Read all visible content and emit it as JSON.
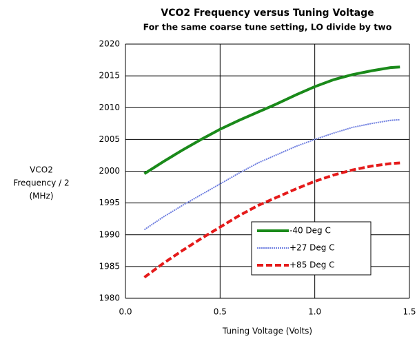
{
  "chart_data": {
    "type": "line",
    "title": "VCO2 Frequency versus Tuning Voltage",
    "subtitle": "For the same coarse tune setting, LO divide by two",
    "x_label": "Tuning Voltage (Volts)",
    "y_label": [
      "VCO2",
      "Frequency / 2",
      "(MHz)"
    ],
    "x": [
      0.1,
      0.2,
      0.3,
      0.4,
      0.5,
      0.6,
      0.7,
      0.8,
      0.9,
      1.0,
      1.1,
      1.2,
      1.3,
      1.4,
      1.45
    ],
    "series": [
      {
        "name": "-40 Deg C",
        "color": "#1a8a1a",
        "style": "solid",
        "values": [
          1999.6,
          2001.5,
          2003.3,
          2005.0,
          2006.6,
          2008.0,
          2009.3,
          2010.6,
          2012.0,
          2013.3,
          2014.4,
          2015.2,
          2015.8,
          2016.3,
          2016.4
        ]
      },
      {
        "name": "+27 Deg C",
        "color": "#6f7fe0",
        "style": "dotted",
        "values": [
          1990.8,
          1992.8,
          1994.6,
          1996.3,
          1998.0,
          1999.7,
          2001.3,
          2002.6,
          2003.9,
          2005.0,
          2006.0,
          2006.9,
          2007.5,
          2008.0,
          2008.1
        ]
      },
      {
        "name": "+85 Deg C",
        "color": "#e51a1a",
        "style": "dashed",
        "values": [
          1983.3,
          1985.5,
          1987.5,
          1989.4,
          1991.2,
          1993.0,
          1994.6,
          1995.9,
          1997.2,
          1998.4,
          1999.4,
          2000.2,
          2000.8,
          2001.2,
          2001.3
        ]
      }
    ],
    "xlim": [
      0,
      1.5
    ],
    "xticks": [
      {
        "value": 0,
        "label": "0.0"
      },
      0.5,
      {
        "value": 1,
        "label": "1.0"
      },
      1.5
    ],
    "ylim": [
      1980,
      2020
    ],
    "yticks": [
      1980,
      1985,
      1990,
      1995,
      2000,
      2005,
      2010,
      2015,
      2020
    ],
    "grid": true
  }
}
